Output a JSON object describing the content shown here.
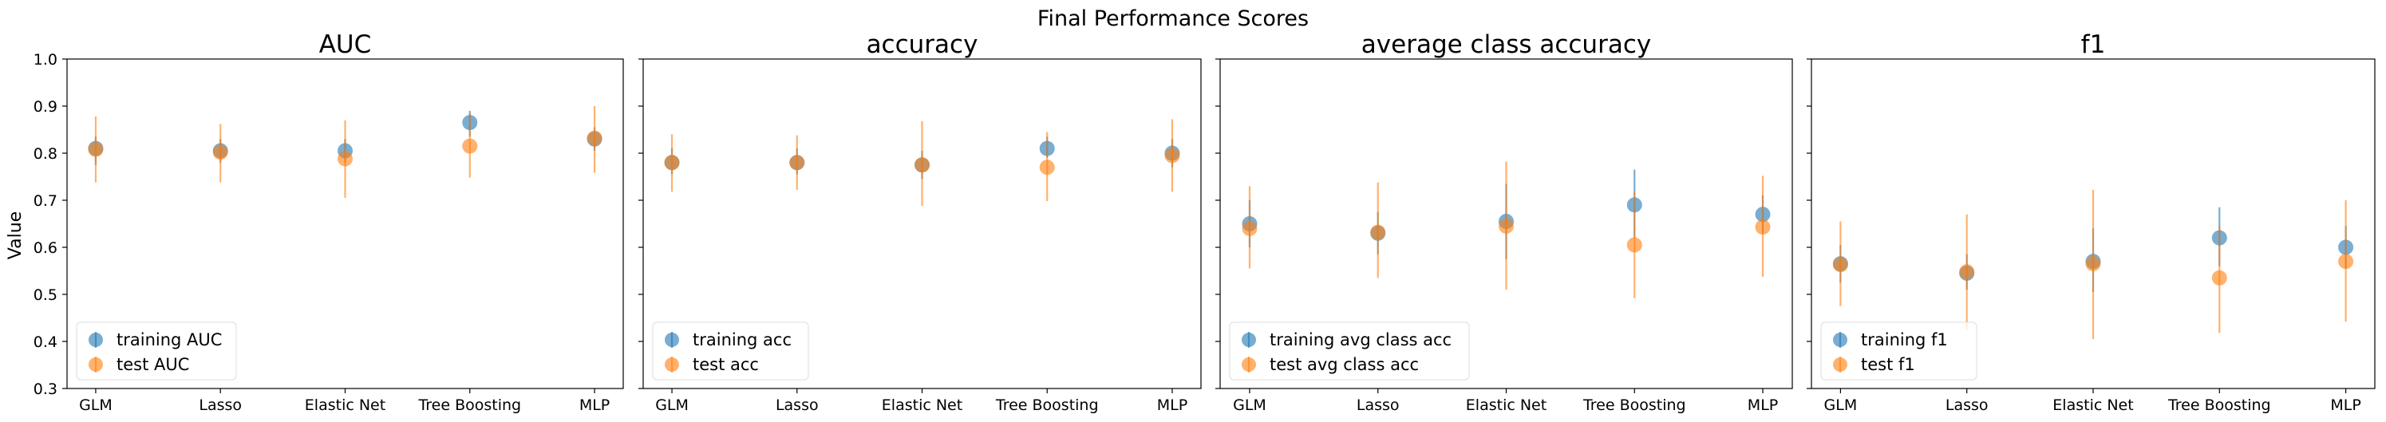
{
  "suptitle": "Final Performance Scores",
  "ylabel": "Value",
  "colors": {
    "training": "#1f77b4",
    "test": "#ff7f0e"
  },
  "chart_data": [
    {
      "type": "scatter",
      "title": "AUC",
      "categories": [
        "GLM",
        "Lasso",
        "Elastic Net",
        "Tree Boosting",
        "MLP"
      ],
      "ylim": [
        0.3,
        1.0
      ],
      "yticks": [
        "0.3",
        "0.4",
        "0.5",
        "0.6",
        "0.7",
        "0.8",
        "0.9",
        "1.0"
      ],
      "legend_placement": "lower-left",
      "series": [
        {
          "name": "training AUC",
          "role": "training",
          "values": [
            0.81,
            0.805,
            0.805,
            0.865,
            0.83
          ],
          "err_low": [
            0.775,
            0.78,
            0.78,
            0.835,
            0.805
          ],
          "err_high": [
            0.835,
            0.83,
            0.83,
            0.89,
            0.855
          ]
        },
        {
          "name": "test AUC",
          "role": "test",
          "values": [
            0.808,
            0.802,
            0.788,
            0.815,
            0.832
          ],
          "err_low": [
            0.738,
            0.738,
            0.705,
            0.748,
            0.758
          ],
          "err_high": [
            0.878,
            0.862,
            0.87,
            0.885,
            0.9
          ]
        }
      ]
    },
    {
      "type": "scatter",
      "title": "accuracy",
      "categories": [
        "GLM",
        "Lasso",
        "Elastic Net",
        "Tree Boosting",
        "MLP"
      ],
      "ylim": [
        0.3,
        1.0
      ],
      "legend_placement": "lower-left",
      "series": [
        {
          "name": "training acc",
          "role": "training",
          "values": [
            0.78,
            0.78,
            0.775,
            0.81,
            0.8
          ],
          "err_low": [
            0.755,
            0.755,
            0.745,
            0.79,
            0.77
          ],
          "err_high": [
            0.81,
            0.81,
            0.805,
            0.835,
            0.83
          ]
        },
        {
          "name": "test acc",
          "role": "test",
          "values": [
            0.78,
            0.78,
            0.775,
            0.77,
            0.795
          ],
          "err_low": [
            0.718,
            0.722,
            0.688,
            0.698,
            0.718
          ],
          "err_high": [
            0.84,
            0.838,
            0.868,
            0.845,
            0.872
          ]
        }
      ]
    },
    {
      "type": "scatter",
      "title": "average class accuracy",
      "categories": [
        "GLM",
        "Lasso",
        "Elastic Net",
        "Tree Boosting",
        "MLP"
      ],
      "ylim": [
        0.3,
        1.0
      ],
      "legend_placement": "lower-left",
      "series": [
        {
          "name": "training avg class acc",
          "role": "training",
          "values": [
            0.65,
            0.63,
            0.655,
            0.69,
            0.67
          ],
          "err_low": [
            0.6,
            0.585,
            0.575,
            0.62,
            0.63
          ],
          "err_high": [
            0.7,
            0.675,
            0.735,
            0.765,
            0.71
          ]
        },
        {
          "name": "test avg class acc",
          "role": "test",
          "values": [
            0.64,
            0.632,
            0.645,
            0.605,
            0.643
          ],
          "err_low": [
            0.555,
            0.535,
            0.51,
            0.492,
            0.537
          ],
          "err_high": [
            0.73,
            0.738,
            0.782,
            0.718,
            0.752
          ]
        }
      ]
    },
    {
      "type": "scatter",
      "title": "f1",
      "categories": [
        "GLM",
        "Lasso",
        "Elastic Net",
        "Tree Boosting",
        "MLP"
      ],
      "ylim": [
        0.3,
        1.0
      ],
      "legend_placement": "lower-left",
      "series": [
        {
          "name": "training f1",
          "role": "training",
          "values": [
            0.565,
            0.545,
            0.57,
            0.62,
            0.6
          ],
          "err_low": [
            0.525,
            0.51,
            0.505,
            0.56,
            0.555
          ],
          "err_high": [
            0.605,
            0.585,
            0.64,
            0.685,
            0.645
          ]
        },
        {
          "name": "test f1",
          "role": "test",
          "values": [
            0.563,
            0.548,
            0.565,
            0.535,
            0.57
          ],
          "err_low": [
            0.475,
            0.425,
            0.405,
            0.418,
            0.442
          ],
          "err_high": [
            0.655,
            0.67,
            0.722,
            0.645,
            0.7
          ]
        }
      ]
    }
  ]
}
